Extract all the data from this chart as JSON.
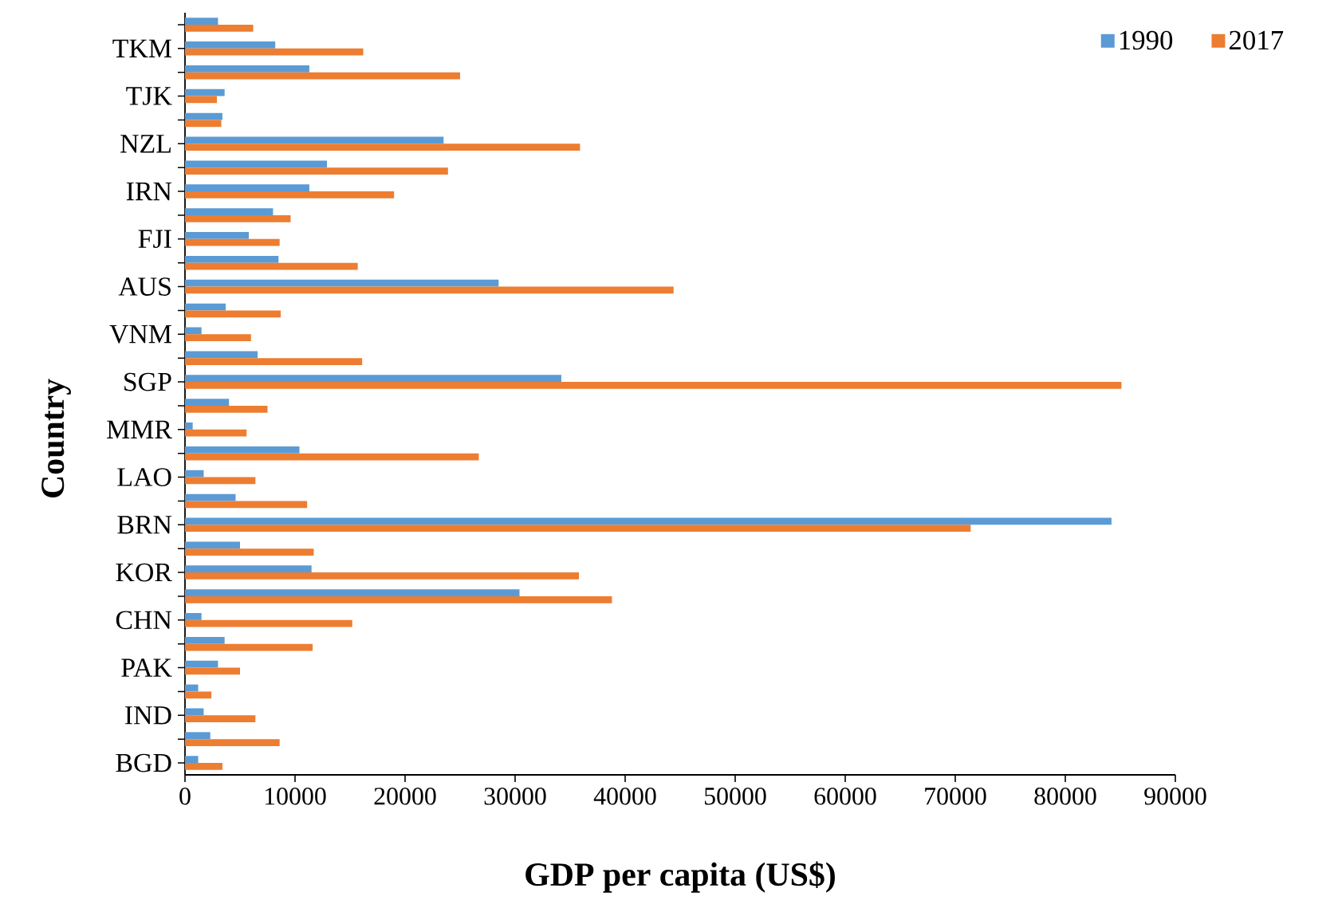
{
  "chart_data": {
    "type": "bar",
    "orientation": "horizontal",
    "xlabel": "GDP per capita (US$)",
    "ylabel": "Country",
    "categories": [
      null,
      "TKM",
      null,
      "TJK",
      null,
      "NZL",
      null,
      "IRN",
      null,
      "FJI",
      null,
      "AUS",
      null,
      "VNM",
      null,
      "SGP",
      null,
      "MMR",
      null,
      "LAO",
      null,
      "BRN",
      null,
      "KOR",
      null,
      "CHN",
      null,
      "PAK",
      null,
      "IND",
      null,
      "BGD"
    ],
    "series": [
      {
        "name": "1990",
        "color": "#5b9bd5",
        "values": [
          3000,
          8200,
          11300,
          3600,
          3400,
          23500,
          12900,
          11300,
          8000,
          5800,
          8500,
          28500,
          3700,
          1500,
          6600,
          34200,
          4000,
          700,
          10400,
          1700,
          4600,
          84200,
          5000,
          11500,
          30400,
          1500,
          3600,
          3000,
          1200,
          1700,
          2300,
          1200
        ]
      },
      {
        "name": "2017",
        "color": "#ed7d31",
        "values": [
          6200,
          16200,
          25000,
          2900,
          3300,
          35900,
          23900,
          19000,
          9600,
          8600,
          15700,
          44400,
          8700,
          6000,
          16100,
          85100,
          7500,
          5600,
          26700,
          6400,
          11100,
          71400,
          11700,
          35800,
          38800,
          15200,
          11600,
          5000,
          2400,
          6400,
          8600,
          3400
        ]
      }
    ],
    "xlim": [
      0,
      90000
    ],
    "xticks": [
      0,
      10000,
      20000,
      30000,
      40000,
      50000,
      60000,
      70000,
      80000,
      90000
    ],
    "legend": "top right"
  }
}
